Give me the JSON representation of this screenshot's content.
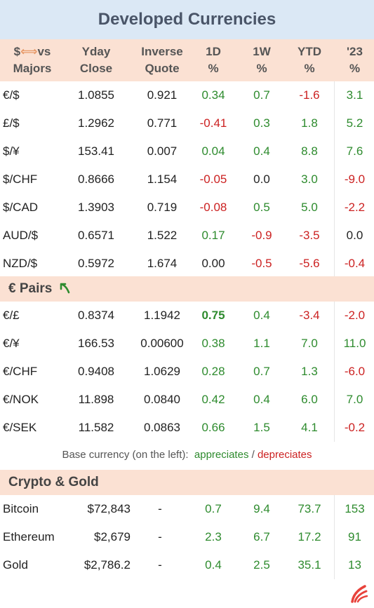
{
  "title": "Developed Currencies",
  "header": {
    "col0_line1_a": "$",
    "col0_arrow": "⟺",
    "col0_line1_b": "vs",
    "col0_line2": "Majors",
    "yday": [
      "Yday",
      "Close"
    ],
    "inverse": [
      "Inverse",
      "Quote"
    ],
    "d1": [
      "1D",
      "%"
    ],
    "w1": [
      "1W",
      "%"
    ],
    "ytd": [
      "YTD",
      "%"
    ],
    "y23": [
      "'23",
      "%"
    ]
  },
  "majors": [
    {
      "pair": "€/$",
      "close": "1.0855",
      "inverse": "0.921",
      "d1": "0.34",
      "w1": "0.7",
      "ytd": "-1.6",
      "y23": "3.1"
    },
    {
      "pair": "£/$",
      "close": "1.2962",
      "inverse": "0.771",
      "d1": "-0.41",
      "w1": "0.3",
      "ytd": "1.8",
      "y23": "5.2"
    },
    {
      "pair": "$/¥",
      "close": "153.41",
      "inverse": "0.007",
      "d1": "0.04",
      "w1": "0.4",
      "ytd": "8.8",
      "y23": "7.6"
    },
    {
      "pair": "$/CHF",
      "close": "0.8666",
      "inverse": "1.154",
      "d1": "-0.05",
      "w1": "0.0",
      "ytd": "3.0",
      "y23": "-9.0"
    },
    {
      "pair": "$/CAD",
      "close": "1.3903",
      "inverse": "0.719",
      "d1": "-0.08",
      "w1": "0.5",
      "ytd": "5.0",
      "y23": "-2.2"
    },
    {
      "pair": "AUD/$",
      "close": "0.6571",
      "inverse": "1.522",
      "d1": "0.17",
      "w1": "-0.9",
      "ytd": "-3.5",
      "y23": "0.0"
    },
    {
      "pair": "NZD/$",
      "close": "0.5972",
      "inverse": "1.674",
      "d1": "0.00",
      "w1": "-0.5",
      "ytd": "-5.6",
      "y23": "-0.4"
    }
  ],
  "euro_section": {
    "title": "€ Pairs",
    "icon": "curved-arrow-icon"
  },
  "euro_pairs": [
    {
      "pair": "€/£",
      "close": "0.8374",
      "inverse": "1.1942",
      "d1": "0.75",
      "w1": "0.4",
      "ytd": "-3.4",
      "y23": "-2.0"
    },
    {
      "pair": "€/¥",
      "close": "166.53",
      "inverse": "0.00600",
      "d1": "0.38",
      "w1": "1.1",
      "ytd": "7.0",
      "y23": "11.0"
    },
    {
      "pair": "€/CHF",
      "close": "0.9408",
      "inverse": "1.0629",
      "d1": "0.28",
      "w1": "0.7",
      "ytd": "1.3",
      "y23": "-6.0"
    },
    {
      "pair": "€/NOK",
      "close": "11.898",
      "inverse": "0.0840",
      "d1": "0.42",
      "w1": "0.4",
      "ytd": "6.0",
      "y23": "7.0"
    },
    {
      "pair": "€/SEK",
      "close": "11.582",
      "inverse": "0.0863",
      "d1": "0.66",
      "w1": "1.5",
      "ytd": "4.1",
      "y23": "-0.2"
    }
  ],
  "note": {
    "prefix": "Base currency (on the left):",
    "appreciates": "appreciates",
    "slash": "/",
    "depreciates": "depreciates"
  },
  "crypto_section": {
    "title": "Crypto & Gold"
  },
  "crypto": [
    {
      "name": "Bitcoin",
      "price": "$72,843",
      "dash": "-",
      "d1": "0.7",
      "w1": "9.4",
      "ytd": "73.7",
      "y23": "153"
    },
    {
      "name": "Ethereum",
      "price": "$2,679",
      "dash": "-",
      "d1": "2.3",
      "w1": "6.7",
      "ytd": "17.2",
      "y23": "91"
    },
    {
      "name": "Gold",
      "price": "$2,786.2",
      "dash": "-",
      "d1": "0.4",
      "w1": "2.5",
      "ytd": "35.1",
      "y23": "13"
    }
  ],
  "colors": {
    "positive": "#2e8b2e",
    "negative": "#cc2222",
    "header_bg": "#fbe1d3",
    "title_bg": "#dbe8f5"
  },
  "logo": "brand-logo-icon"
}
